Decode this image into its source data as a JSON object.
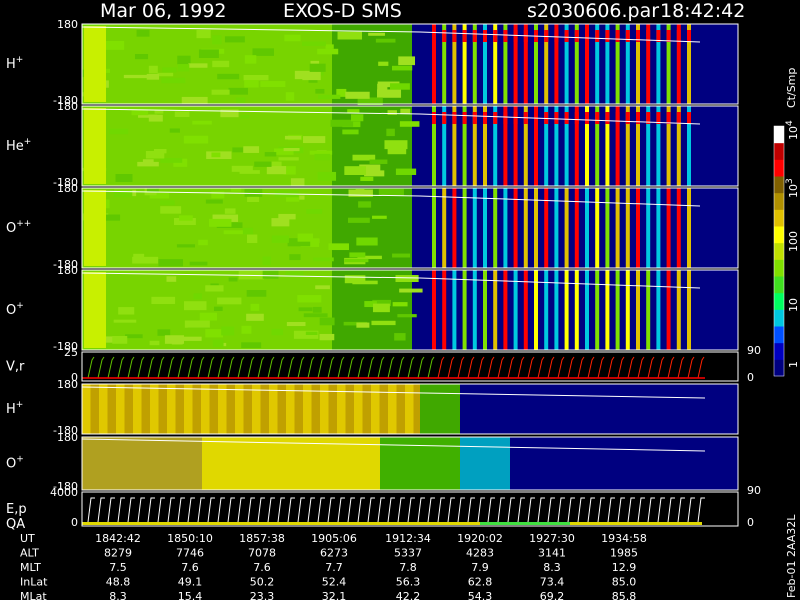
{
  "header": {
    "date": "Mar 06, 1992",
    "instrument": "EXOS-D SMS",
    "file": "s2030606.par",
    "time": "18:42:42"
  },
  "colors": {
    "background": "#000000",
    "panel_border": "#ffffff",
    "trace": "#ffffff"
  },
  "panels": [
    {
      "id": "h-plus-1",
      "label": "H",
      "sup": "+",
      "ymax": "180",
      "ymin": "-180"
    },
    {
      "id": "he-plus",
      "label": "He",
      "sup": "+",
      "ymax": "180",
      "ymin": "-180"
    },
    {
      "id": "o-plus-plus",
      "label": "O",
      "sup": "++",
      "ymax": "180",
      "ymin": "-180"
    },
    {
      "id": "o-plus-1",
      "label": "O",
      "sup": "+",
      "ymax": "180",
      "ymin": "-180",
      "right_tick": "90"
    },
    {
      "id": "vr",
      "label": "V,r",
      "sup": "",
      "ymax": "25",
      "ymin": "0",
      "right_tick": "0"
    },
    {
      "id": "h-plus-2",
      "label": "H",
      "sup": "+",
      "ymax": "180",
      "ymin": "-180"
    },
    {
      "id": "o-plus-2",
      "label": "O",
      "sup": "+",
      "ymax": "180",
      "ymin": "-180",
      "right_tick": "90"
    },
    {
      "id": "ep-qa",
      "label": "E,p",
      "label2": "QA",
      "sup": "",
      "ymax": "4000",
      "ymin": "0",
      "right_tick": "0"
    }
  ],
  "colorbar": {
    "unit": "Ct/Smp",
    "labels": [
      {
        "base": "10",
        "exp": "4"
      },
      {
        "base": "10",
        "exp": "3"
      },
      {
        "base": "100",
        "exp": ""
      },
      {
        "base": "10",
        "exp": ""
      },
      {
        "base": "1",
        "exp": ""
      }
    ],
    "colors": [
      "#000080",
      "#0000c0",
      "#0050ff",
      "#00c8e0",
      "#00ff60",
      "#40e020",
      "#80e000",
      "#c0e000",
      "#ffff00",
      "#e0c000",
      "#b09000",
      "#806000",
      "#ff0000",
      "#c00000",
      "#ffffff"
    ]
  },
  "footer_label": "Feb-01 2AA32L",
  "chart_data": {
    "type": "heatmap",
    "title": "Mar 06, 1992   EXOS-D SMS",
    "x_label": "UT",
    "table": {
      "rows": [
        {
          "name": "UT",
          "values": [
            "1842:42",
            "1850:10",
            "1857:38",
            "1905:06",
            "1912:34",
            "1920:02",
            "1927:30",
            "1934:58"
          ]
        },
        {
          "name": "ALT",
          "values": [
            "8279",
            "7746",
            "7078",
            "6273",
            "5337",
            "4283",
            "3141",
            "1985"
          ]
        },
        {
          "name": "MLT",
          "values": [
            "7.5",
            "7.6",
            "7.6",
            "7.7",
            "7.8",
            "7.9",
            "8.3",
            "12.9"
          ]
        },
        {
          "name": "InLat",
          "values": [
            "48.8",
            "49.1",
            "50.2",
            "52.4",
            "56.3",
            "62.8",
            "73.4",
            "85.0"
          ]
        },
        {
          "name": "MLat",
          "values": [
            "8.3",
            "15.4",
            "23.3",
            "32.1",
            "42.2",
            "54.3",
            "69.2",
            "85.8"
          ]
        }
      ]
    }
  }
}
